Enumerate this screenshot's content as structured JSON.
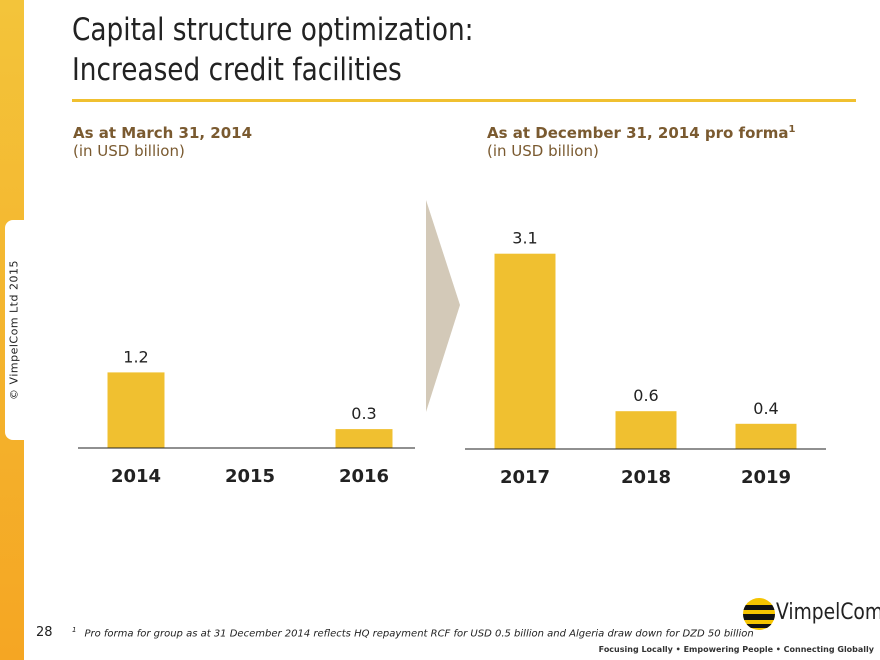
{
  "slide": {
    "title_line1": "Capital structure optimization:",
    "title_line2": "Increased credit facilities",
    "copyright": "© VimpelCom Ltd 2015",
    "page_number": "28",
    "footnote_marker": "1",
    "footnote": "Pro forma for group as at 31 December 2014 reflects HQ repayment RCF for USD 0.5 billion and Algeria draw down for DZD 50 billion",
    "logo_text": "VimpelCom",
    "tagline": "Focusing Locally • Empowering People • Connecting Globally",
    "colors": {
      "accent": "#f0c030",
      "arrow": "#d3c9b8",
      "subtitle": "#7a5a30"
    }
  },
  "chart_data": [
    {
      "type": "bar",
      "title": "As at March 31, 2014",
      "subtitle": "(in USD billion)",
      "categories": [
        "2014",
        "2015",
        "2016"
      ],
      "values": [
        1.2,
        null,
        0.3
      ],
      "labels": [
        "1.2",
        "",
        "0.3"
      ],
      "color": "#f0c030",
      "grid": false
    },
    {
      "type": "bar",
      "title": "As at December 31, 2014 pro forma",
      "title_sup": "1",
      "subtitle": "(in USD billion)",
      "categories": [
        "2017",
        "2018",
        "2019"
      ],
      "values": [
        3.1,
        0.6,
        0.4
      ],
      "labels": [
        "3.1",
        "0.6",
        "0.4"
      ],
      "color": "#f0c030",
      "grid": false
    }
  ]
}
